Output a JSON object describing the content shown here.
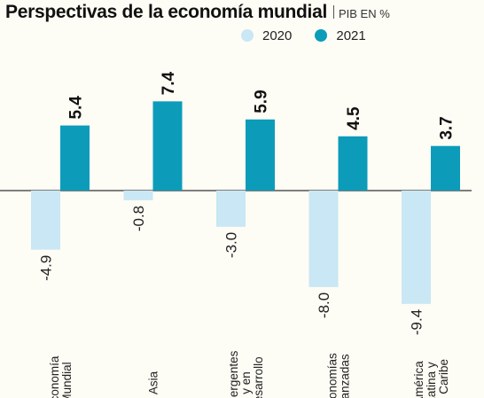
{
  "chart_data": {
    "type": "bar",
    "title": "Perspectivas de la economía mundial",
    "subtitle": "PIB EN %",
    "categories": [
      [
        "Economía",
        "Mundial"
      ],
      [
        "Asia"
      ],
      [
        "Emergentes",
        "y en",
        "desarrollo"
      ],
      [
        "Economías",
        "avanzadas"
      ],
      [
        "América",
        "Latina y",
        "el Caribe"
      ]
    ],
    "series": [
      {
        "name": "2020",
        "color": "#c9e7f4",
        "values": [
          -4.9,
          -0.8,
          -3.0,
          -8.0,
          -9.4
        ],
        "labels": [
          "-4.9",
          "-0.8",
          "-3.0",
          "-8.0",
          "-9.4"
        ]
      },
      {
        "name": "2021",
        "color": "#0c9cba",
        "values": [
          5.4,
          7.4,
          5.9,
          4.5,
          3.7
        ],
        "labels": [
          "5.4",
          "7.4",
          "5.9",
          "4.5",
          "3.7"
        ]
      }
    ],
    "ylim": [
      -10,
      8
    ],
    "grid": false,
    "legend_position": "top-right"
  }
}
